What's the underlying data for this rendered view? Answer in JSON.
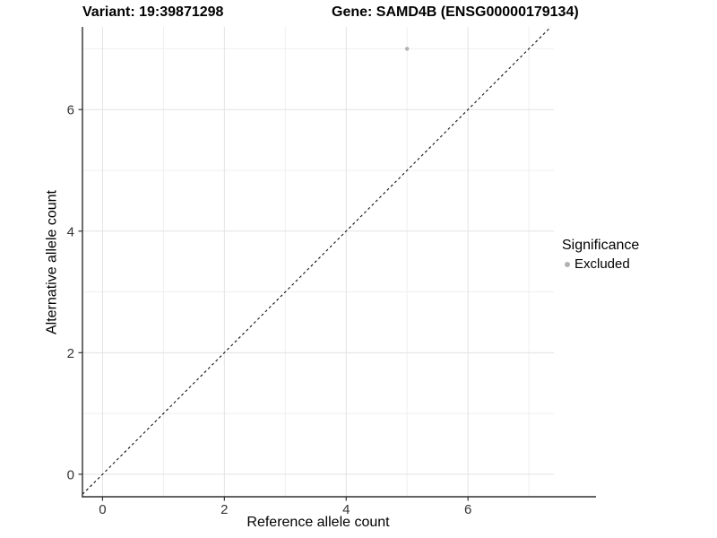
{
  "title": {
    "left": "Variant: 19:39871298",
    "right": "Gene: SAMD4B (ENSG00000179134)"
  },
  "chart_data": {
    "type": "scatter",
    "title": "Variant: 19:39871298   Gene: SAMD4B (ENSG00000179134)",
    "xlabel": "Reference allele count",
    "ylabel": "Alternative allele count",
    "xlim": [
      -0.33,
      7.41
    ],
    "ylim": [
      -0.37,
      7.36
    ],
    "x_ticks": [
      0,
      2,
      4,
      6
    ],
    "y_ticks": [
      0,
      2,
      4,
      6
    ],
    "x_minor_gridlines": [
      1,
      3,
      5,
      7
    ],
    "y_minor_gridlines": [
      1,
      3,
      5,
      7
    ],
    "grid": true,
    "points": [
      {
        "x": 5,
        "y": 7,
        "series": "Excluded"
      }
    ],
    "reference_line": {
      "kind": "identity",
      "equation": "y = x",
      "style": "dashed"
    },
    "legend": {
      "title": "Significance",
      "position": "right",
      "items": [
        {
          "label": "Excluded",
          "color": "#b2b2b2",
          "marker": "circle"
        }
      ]
    },
    "colors": {
      "point": "#b2b2b2",
      "grid_major": "#e3e3e3",
      "grid_minor": "#efefef",
      "axis_line": "#2e2e2e",
      "tick_mark": "#333333",
      "tick_label": "#333333",
      "dashed_line": "#111111",
      "panel_background": "#ffffff"
    }
  }
}
